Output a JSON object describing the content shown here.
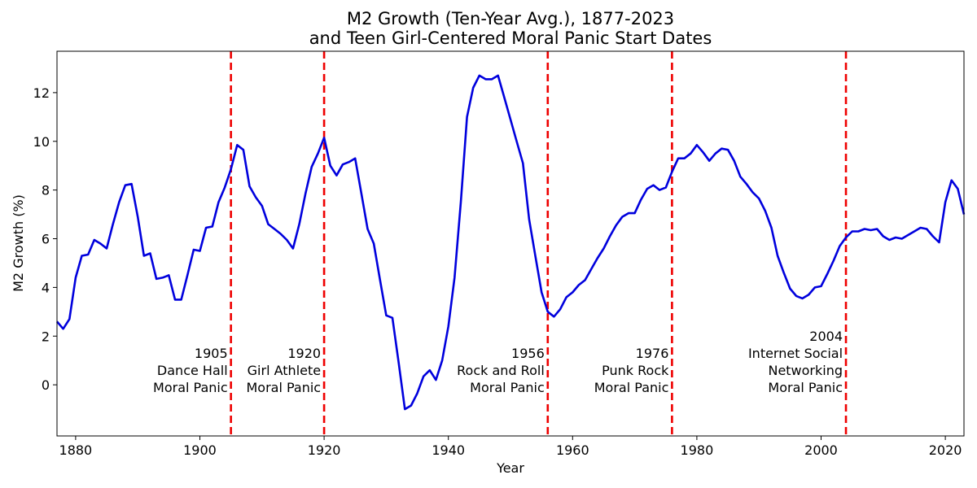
{
  "chart_data": {
    "type": "line",
    "title": "M2 Growth (Ten-Year Avg.), 1877-2023",
    "subtitle": "and Teen Girl-Centered Moral Panic Start Dates",
    "xlabel": "Year",
    "ylabel": "M2 Growth (%)",
    "xlim": [
      1877,
      2023
    ],
    "ylim": [
      -2.1,
      13.7
    ],
    "xticks": [
      1880,
      1900,
      1920,
      1940,
      1960,
      1980,
      2000,
      2020
    ],
    "yticks": [
      0,
      2,
      4,
      6,
      8,
      10,
      12
    ],
    "grid": false,
    "series": [
      {
        "name": "M2 Growth (Ten-Year Avg.)",
        "color": "#0000dd",
        "x": [
          1877,
          1878,
          1879,
          1880,
          1881,
          1882,
          1883,
          1884,
          1885,
          1886,
          1887,
          1888,
          1889,
          1890,
          1891,
          1892,
          1893,
          1894,
          1895,
          1896,
          1897,
          1898,
          1899,
          1900,
          1901,
          1902,
          1903,
          1904,
          1905,
          1906,
          1907,
          1908,
          1909,
          1910,
          1911,
          1912,
          1913,
          1914,
          1915,
          1916,
          1917,
          1918,
          1919,
          1920,
          1921,
          1922,
          1923,
          1924,
          1925,
          1926,
          1927,
          1928,
          1929,
          1930,
          1931,
          1932,
          1933,
          1934,
          1935,
          1936,
          1937,
          1938,
          1939,
          1940,
          1941,
          1942,
          1943,
          1944,
          1945,
          1946,
          1947,
          1948,
          1949,
          1950,
          1951,
          1952,
          1953,
          1954,
          1955,
          1956,
          1957,
          1958,
          1959,
          1960,
          1961,
          1962,
          1963,
          1964,
          1965,
          1966,
          1967,
          1968,
          1969,
          1970,
          1971,
          1972,
          1973,
          1974,
          1975,
          1976,
          1977,
          1978,
          1979,
          1980,
          1981,
          1982,
          1983,
          1984,
          1985,
          1986,
          1987,
          1988,
          1989,
          1990,
          1991,
          1992,
          1993,
          1994,
          1995,
          1996,
          1997,
          1998,
          1999,
          2000,
          2001,
          2002,
          2003,
          2004,
          2005,
          2006,
          2007,
          2008,
          2009,
          2010,
          2011,
          2012,
          2013,
          2014,
          2015,
          2016,
          2017,
          2018,
          2019,
          2020,
          2021,
          2022,
          2023
        ],
        "values": [
          2.6,
          2.3,
          2.7,
          4.4,
          5.3,
          5.35,
          5.95,
          5.8,
          5.6,
          6.6,
          7.5,
          8.2,
          8.25,
          6.9,
          5.3,
          5.4,
          4.35,
          4.4,
          4.5,
          3.5,
          3.5,
          4.5,
          5.55,
          5.5,
          6.45,
          6.5,
          7.5,
          8.1,
          8.85,
          9.85,
          9.65,
          8.15,
          7.7,
          7.35,
          6.6,
          6.4,
          6.2,
          5.95,
          5.6,
          6.6,
          7.85,
          8.95,
          9.5,
          10.15,
          9.0,
          8.6,
          9.05,
          9.15,
          9.3,
          7.85,
          6.4,
          5.8,
          4.3,
          2.85,
          2.75,
          0.9,
          -1.0,
          -0.85,
          -0.35,
          0.35,
          0.6,
          0.2,
          1.0,
          2.4,
          4.4,
          7.5,
          11.0,
          12.2,
          12.7,
          12.55,
          12.55,
          12.7,
          11.8,
          10.9,
          10.0,
          9.1,
          6.8,
          5.3,
          3.8,
          3.0,
          2.8,
          3.1,
          3.6,
          3.8,
          4.1,
          4.3,
          4.75,
          5.2,
          5.6,
          6.1,
          6.55,
          6.9,
          7.05,
          7.05,
          7.6,
          8.05,
          8.2,
          8.0,
          8.1,
          8.75,
          9.3,
          9.3,
          9.5,
          9.85,
          9.55,
          9.2,
          9.5,
          9.7,
          9.65,
          9.2,
          8.55,
          8.25,
          7.9,
          7.65,
          7.15,
          6.45,
          5.3,
          4.6,
          3.95,
          3.65,
          3.55,
          3.7,
          4.0,
          4.05,
          4.55,
          5.1,
          5.7,
          6.05,
          6.3,
          6.3,
          6.4,
          6.35,
          6.4,
          6.1,
          5.95,
          6.05,
          6.0,
          6.15,
          6.3,
          6.45,
          6.4,
          6.1,
          5.85,
          7.5,
          8.4,
          8.05,
          7.0
        ]
      }
    ],
    "vlines": [
      {
        "x": 1905,
        "color": "#ee0000",
        "year_label": "1905",
        "lines": [
          "Dance Hall",
          "Moral Panic"
        ]
      },
      {
        "x": 1920,
        "color": "#ee0000",
        "year_label": "1920",
        "lines": [
          "Girl Athlete",
          "Moral Panic"
        ]
      },
      {
        "x": 1956,
        "color": "#ee0000",
        "year_label": "1956",
        "lines": [
          "Rock and Roll",
          "Moral Panic"
        ]
      },
      {
        "x": 1976,
        "color": "#ee0000",
        "year_label": "1976",
        "lines": [
          "Punk Rock",
          "Moral Panic"
        ]
      },
      {
        "x": 2004,
        "color": "#ee0000",
        "year_label": "2004",
        "lines": [
          "Internet Social",
          "Networking",
          "Moral Panic"
        ]
      }
    ]
  }
}
